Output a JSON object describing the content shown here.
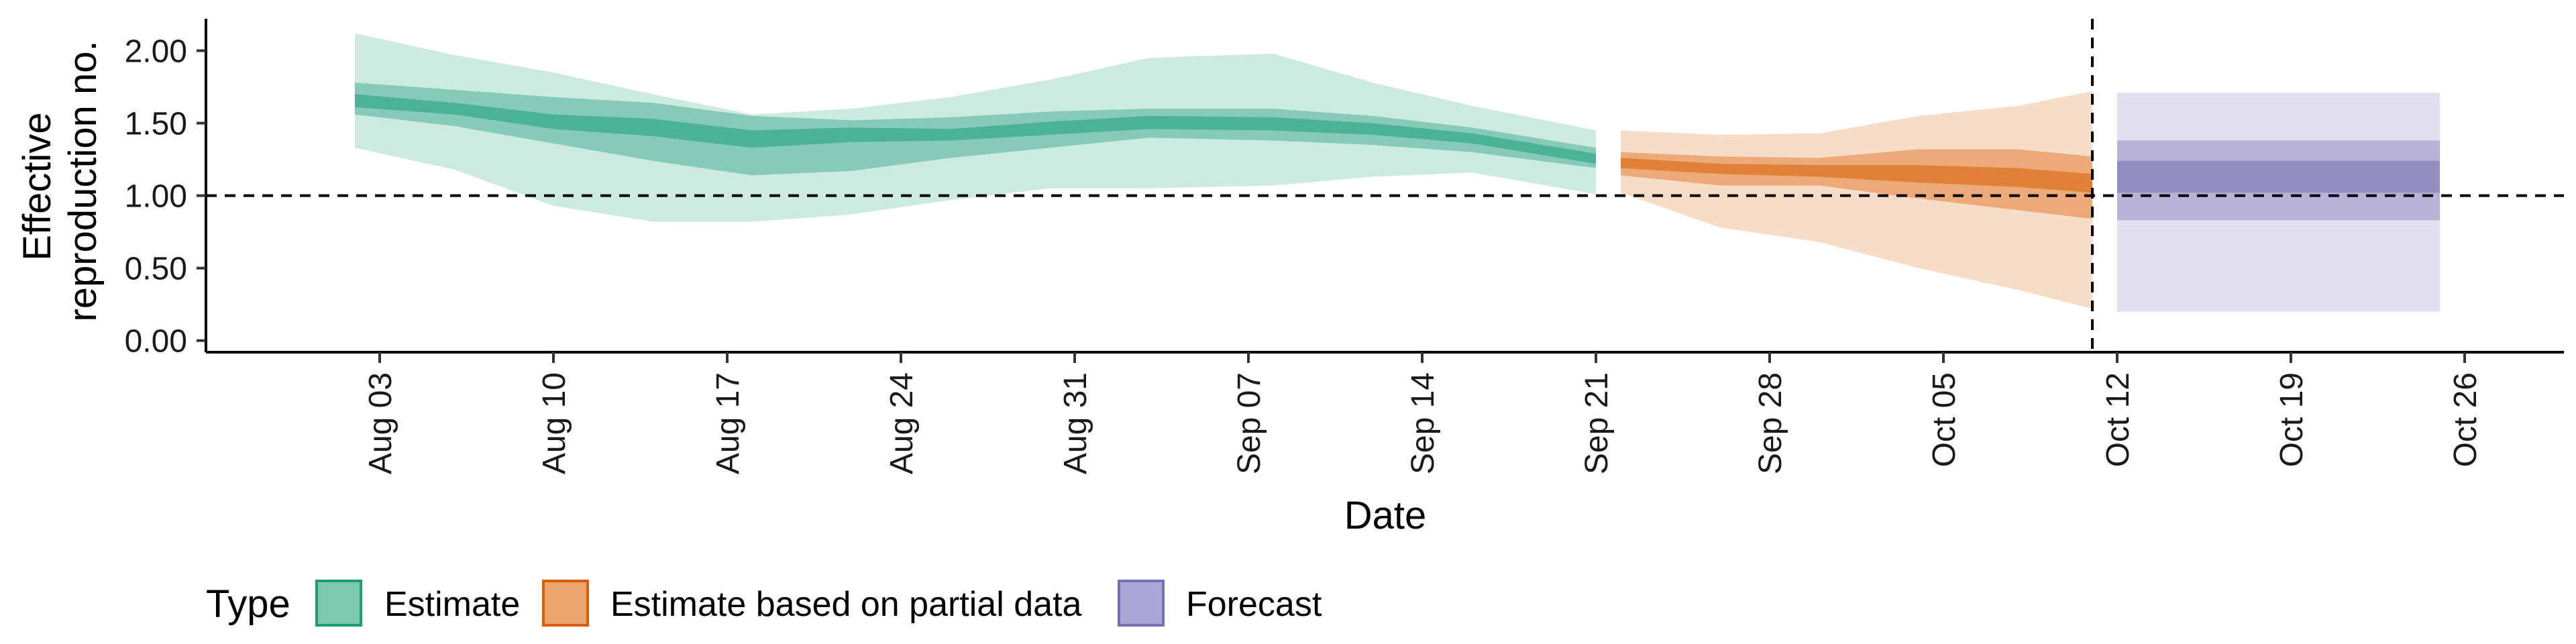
{
  "chart_data": {
    "type": "area",
    "xlabel": "Date",
    "ylabel_lines": [
      "Effective",
      "reproduction no."
    ],
    "x_range": [
      "2020-07-27",
      "2020-10-30"
    ],
    "ylim": [
      -0.08,
      2.22
    ],
    "y_ticks": [
      {
        "value": 0.0,
        "label": "0.00"
      },
      {
        "value": 0.5,
        "label": "0.50"
      },
      {
        "value": 1.0,
        "label": "1.00"
      },
      {
        "value": 1.5,
        "label": "1.50"
      },
      {
        "value": 2.0,
        "label": "2.00"
      }
    ],
    "x_ticks": [
      {
        "date": "2020-08-03",
        "label": "Aug 03"
      },
      {
        "date": "2020-08-10",
        "label": "Aug 10"
      },
      {
        "date": "2020-08-17",
        "label": "Aug 17"
      },
      {
        "date": "2020-08-24",
        "label": "Aug 24"
      },
      {
        "date": "2020-08-31",
        "label": "Aug 31"
      },
      {
        "date": "2020-09-07",
        "label": "Sep 07"
      },
      {
        "date": "2020-09-14",
        "label": "Sep 14"
      },
      {
        "date": "2020-09-21",
        "label": "Sep 21"
      },
      {
        "date": "2020-09-28",
        "label": "Sep 28"
      },
      {
        "date": "2020-10-05",
        "label": "Oct 05"
      },
      {
        "date": "2020-10-12",
        "label": "Oct 12"
      },
      {
        "date": "2020-10-19",
        "label": "Oct 19"
      },
      {
        "date": "2020-10-26",
        "label": "Oct 26"
      }
    ],
    "reference_lines": [
      {
        "axis": "y",
        "value": 1.0,
        "style": "dashed"
      },
      {
        "axis": "x",
        "value": "2020-10-11",
        "style": "dashed"
      }
    ],
    "legend": {
      "title": "Type",
      "position": "bottom-left",
      "entries": [
        {
          "label": "Estimate",
          "fill": "#7ec9ad",
          "stroke": "#1b9e77"
        },
        {
          "label": "Estimate based on partial data",
          "fill": "#eca66d",
          "stroke": "#d95f02"
        },
        {
          "label": "Forecast",
          "fill": "#aaa7d4",
          "stroke": "#7570b3"
        }
      ]
    },
    "series": [
      {
        "name": "Estimate",
        "color": "#1b9e77",
        "points": [
          {
            "x": "2020-08-02",
            "lo90": 1.33,
            "lo50": 1.56,
            "lo20": 1.61,
            "hi20": 1.7,
            "hi50": 1.78,
            "hi90": 2.12
          },
          {
            "x": "2020-08-06",
            "lo90": 1.18,
            "lo50": 1.48,
            "lo20": 1.56,
            "hi20": 1.64,
            "hi50": 1.73,
            "hi90": 1.97
          },
          {
            "x": "2020-08-10",
            "lo90": 0.93,
            "lo50": 1.36,
            "lo20": 1.46,
            "hi20": 1.56,
            "hi50": 1.68,
            "hi90": 1.85
          },
          {
            "x": "2020-08-14",
            "lo90": 0.82,
            "lo50": 1.24,
            "lo20": 1.41,
            "hi20": 1.53,
            "hi50": 1.64,
            "hi90": 1.7
          },
          {
            "x": "2020-08-18",
            "lo90": 0.82,
            "lo50": 1.14,
            "lo20": 1.33,
            "hi20": 1.45,
            "hi50": 1.55,
            "hi90": 1.56
          },
          {
            "x": "2020-08-22",
            "lo90": 0.87,
            "lo50": 1.17,
            "lo20": 1.37,
            "hi20": 1.47,
            "hi50": 1.52,
            "hi90": 1.6
          },
          {
            "x": "2020-08-26",
            "lo90": 0.97,
            "lo50": 1.26,
            "lo20": 1.38,
            "hi20": 1.46,
            "hi50": 1.54,
            "hi90": 1.68
          },
          {
            "x": "2020-08-30",
            "lo90": 1.05,
            "lo50": 1.33,
            "lo20": 1.42,
            "hi20": 1.51,
            "hi50": 1.58,
            "hi90": 1.8
          },
          {
            "x": "2020-09-03",
            "lo90": 1.05,
            "lo50": 1.4,
            "lo20": 1.46,
            "hi20": 1.55,
            "hi50": 1.6,
            "hi90": 1.95
          },
          {
            "x": "2020-09-08",
            "lo90": 1.07,
            "lo50": 1.38,
            "lo20": 1.45,
            "hi20": 1.54,
            "hi50": 1.6,
            "hi90": 1.98
          },
          {
            "x": "2020-09-12",
            "lo90": 1.13,
            "lo50": 1.35,
            "lo20": 1.42,
            "hi20": 1.5,
            "hi50": 1.55,
            "hi90": 1.78
          },
          {
            "x": "2020-09-16",
            "lo90": 1.16,
            "lo50": 1.3,
            "lo20": 1.36,
            "hi20": 1.43,
            "hi50": 1.47,
            "hi90": 1.62
          },
          {
            "x": "2020-09-21",
            "lo90": 1.01,
            "lo50": 1.19,
            "lo20": 1.22,
            "hi20": 1.29,
            "hi50": 1.33,
            "hi90": 1.45
          }
        ]
      },
      {
        "name": "Estimate based on partial data",
        "color": "#d95f02",
        "points": [
          {
            "x": "2020-09-22",
            "lo90": 1.02,
            "lo50": 1.14,
            "lo20": 1.19,
            "hi20": 1.26,
            "hi50": 1.3,
            "hi90": 1.45
          },
          {
            "x": "2020-09-26",
            "lo90": 0.78,
            "lo50": 1.07,
            "lo20": 1.15,
            "hi20": 1.22,
            "hi50": 1.27,
            "hi90": 1.42
          },
          {
            "x": "2020-09-30",
            "lo90": 0.68,
            "lo50": 1.07,
            "lo20": 1.13,
            "hi20": 1.21,
            "hi50": 1.26,
            "hi90": 1.43
          },
          {
            "x": "2020-10-04",
            "lo90": 0.5,
            "lo50": 0.98,
            "lo20": 1.09,
            "hi20": 1.21,
            "hi50": 1.32,
            "hi90": 1.55
          },
          {
            "x": "2020-10-08",
            "lo90": 0.35,
            "lo50": 0.9,
            "lo20": 1.06,
            "hi20": 1.19,
            "hi50": 1.32,
            "hi90": 1.62
          },
          {
            "x": "2020-10-11",
            "lo90": 0.22,
            "lo50": 0.84,
            "lo20": 1.02,
            "hi20": 1.15,
            "hi50": 1.27,
            "hi90": 1.72
          }
        ]
      },
      {
        "name": "Forecast",
        "color": "#7570b3",
        "points": [
          {
            "x": "2020-10-12",
            "lo90": 0.2,
            "lo50": 0.83,
            "lo20": 1.02,
            "hi20": 1.24,
            "hi50": 1.38,
            "hi90": 1.71
          },
          {
            "x": "2020-10-25",
            "lo90": 0.2,
            "lo50": 0.83,
            "lo20": 1.02,
            "hi20": 1.24,
            "hi50": 1.38,
            "hi90": 1.71
          }
        ]
      }
    ]
  }
}
